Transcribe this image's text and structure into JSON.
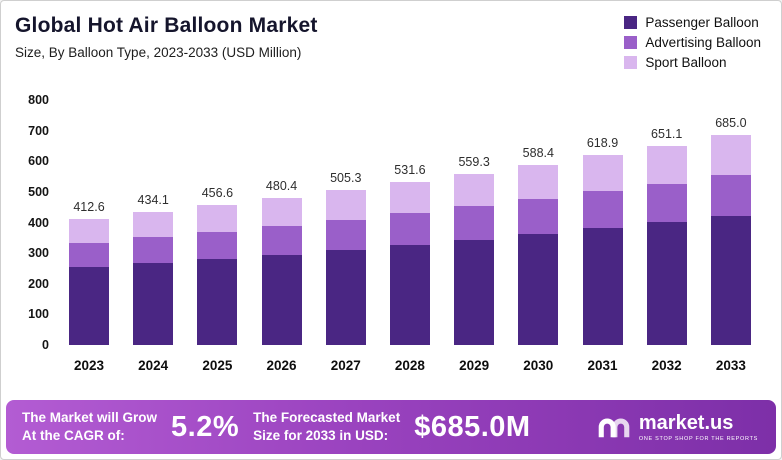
{
  "header": {
    "title": "Global Hot Air Balloon Market",
    "subtitle": "Size, By Balloon Type, 2023-2033 (USD Million)"
  },
  "legend": [
    {
      "label": "Passenger Balloon",
      "color": "#4a2683"
    },
    {
      "label": "Advertising Balloon",
      "color": "#9a5fc9"
    },
    {
      "label": "Sport Balloon",
      "color": "#d9b6ee"
    }
  ],
  "chart_data": {
    "type": "bar",
    "stacked": true,
    "title": "Global Hot Air Balloon Market",
    "subtitle": "Size, By Balloon Type, 2023-2033 (USD Million)",
    "xlabel": "",
    "ylabel": "USD Million",
    "ylim": [
      0,
      800
    ],
    "yticks": [
      0,
      100,
      200,
      300,
      400,
      500,
      600,
      700,
      800
    ],
    "grid": false,
    "legend_position": "top-right",
    "categories": [
      "2023",
      "2024",
      "2025",
      "2026",
      "2027",
      "2028",
      "2029",
      "2030",
      "2031",
      "2032",
      "2033"
    ],
    "series": [
      {
        "name": "Passenger Balloon",
        "color": "#4a2683",
        "values": [
          253.7,
          267.0,
          280.8,
          295.4,
          310.8,
          326.9,
          344.0,
          361.9,
          380.6,
          400.4,
          421.3
        ]
      },
      {
        "name": "Advertising Balloon",
        "color": "#9a5fc9",
        "values": [
          80.5,
          84.6,
          89.0,
          93.7,
          98.5,
          103.7,
          109.1,
          114.7,
          120.7,
          127.0,
          133.6
        ]
      },
      {
        "name": "Sport Balloon",
        "color": "#d9b6ee",
        "values": [
          78.4,
          82.5,
          86.8,
          91.3,
          96.0,
          101.0,
          106.2,
          111.8,
          117.6,
          123.7,
          130.1
        ]
      }
    ],
    "totals": [
      412.6,
      434.1,
      456.6,
      480.4,
      505.3,
      531.6,
      559.3,
      588.4,
      618.9,
      651.1,
      685.0
    ]
  },
  "banner": {
    "cagr_label_line1": "The Market will Grow",
    "cagr_label_line2": "At the CAGR of:",
    "cagr_value": "5.2%",
    "forecast_label_line1": "The Forecasted Market",
    "forecast_label_line2": "Size for 2033 in USD:",
    "forecast_value": "$685.0M",
    "logo_text": "market.us",
    "logo_tagline": "ONE STOP SHOP FOR THE REPORTS"
  }
}
